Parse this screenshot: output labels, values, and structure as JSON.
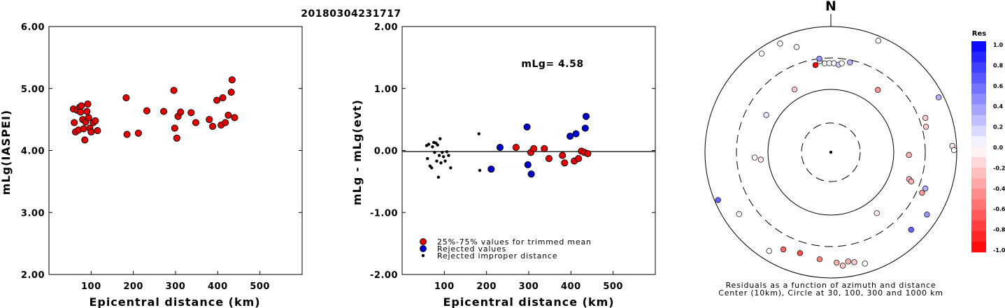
{
  "title": "20180304231717",
  "colors": {
    "red": "#e00000",
    "blue": "#0000cc",
    "black": "#000000"
  },
  "chart_data": [
    {
      "type": "scatter",
      "xlabel": "Epicentral distance (km)",
      "ylabel": "mLg(IASPEI)",
      "xlim": [
        0,
        600
      ],
      "ylim": [
        2.0,
        6.0
      ],
      "xticks": [
        "100",
        "200",
        "300",
        "400",
        "500"
      ],
      "yticks": [
        "2.00",
        "3.00",
        "4.00",
        "5.00",
        "6.00"
      ],
      "series": [
        {
          "color": "red",
          "points": [
            [
              58,
              4.67
            ],
            [
              60,
              4.45
            ],
            [
              63,
              4.3
            ],
            [
              67,
              4.65
            ],
            [
              70,
              4.33
            ],
            [
              73,
              4.7
            ],
            [
              75,
              4.62
            ],
            [
              77,
              4.72
            ],
            [
              80,
              4.5
            ],
            [
              82,
              4.35
            ],
            [
              85,
              4.17
            ],
            [
              87,
              4.46
            ],
            [
              90,
              4.63
            ],
            [
              92,
              4.75
            ],
            [
              94,
              4.53
            ],
            [
              97,
              4.36
            ],
            [
              100,
              4.3
            ],
            [
              105,
              4.45
            ],
            [
              110,
              4.48
            ],
            [
              115,
              4.32
            ],
            [
              183,
              4.85
            ],
            [
              185,
              4.26
            ],
            [
              212,
              4.28
            ],
            [
              232,
              4.64
            ],
            [
              272,
              4.63
            ],
            [
              296,
              4.97
            ],
            [
              298,
              4.36
            ],
            [
              303,
              4.2
            ],
            [
              306,
              4.55
            ],
            [
              312,
              4.62
            ],
            [
              337,
              4.61
            ],
            [
              348,
              4.45
            ],
            [
              380,
              4.5
            ],
            [
              388,
              4.39
            ],
            [
              398,
              4.81
            ],
            [
              408,
              4.41
            ],
            [
              412,
              4.85
            ],
            [
              418,
              4.45
            ],
            [
              425,
              4.57
            ],
            [
              432,
              4.94
            ],
            [
              434,
              5.14
            ],
            [
              440,
              4.53
            ]
          ]
        }
      ]
    },
    {
      "type": "scatter",
      "xlabel": "Epicentral distance (km)",
      "ylabel": "mLg - mLg(evt)",
      "xlim": [
        0,
        600
      ],
      "ylim": [
        -2.0,
        2.0
      ],
      "xticks": [
        "100",
        "200",
        "300",
        "400",
        "500"
      ],
      "yticks": [
        "-2.00",
        "-1.00",
        "0.00",
        "1.00",
        "2.00"
      ],
      "annotation": "mLg= 4.58",
      "series": [
        {
          "name": "25%-75% values for trimmed mean",
          "color": "red",
          "marker": "circle",
          "points": [
            [
              270,
              0.05
            ],
            [
              305,
              -0.03
            ],
            [
              312,
              0.03
            ],
            [
              337,
              0.03
            ],
            [
              348,
              -0.13
            ],
            [
              380,
              -0.08
            ],
            [
              385,
              -0.2
            ],
            [
              408,
              -0.17
            ],
            [
              418,
              -0.13
            ],
            [
              425,
              -0.01
            ],
            [
              432,
              -0.03
            ],
            [
              440,
              -0.05
            ]
          ]
        },
        {
          "name": "Rejected values",
          "color": "blue",
          "marker": "circle",
          "points": [
            [
              211,
              -0.3
            ],
            [
              232,
              0.05
            ],
            [
              296,
              0.38
            ],
            [
              298,
              -0.23
            ],
            [
              306,
              -0.38
            ],
            [
              398,
              0.23
            ],
            [
              412,
              0.27
            ],
            [
              434,
              0.36
            ],
            [
              436,
              0.55
            ]
          ]
        },
        {
          "name": "Rejected improper distance",
          "color": "black",
          "marker": "dot",
          "points": [
            [
              58,
              0.08
            ],
            [
              60,
              -0.13
            ],
            [
              63,
              0.1
            ],
            [
              66,
              -0.25
            ],
            [
              70,
              -0.28
            ],
            [
              72,
              0.06
            ],
            [
              75,
              0.13
            ],
            [
              77,
              -0.03
            ],
            [
              80,
              0.12
            ],
            [
              82,
              -0.17
            ],
            [
              84,
              0.09
            ],
            [
              86,
              -0.43
            ],
            [
              88,
              -0.08
            ],
            [
              90,
              0.19
            ],
            [
              92,
              -0.2
            ],
            [
              95,
              -0.03
            ],
            [
              98,
              -0.1
            ],
            [
              102,
              -0.17
            ],
            [
              106,
              -0.02
            ],
            [
              110,
              -0.08
            ],
            [
              115,
              -0.28
            ],
            [
              182,
              0.27
            ],
            [
              184,
              -0.32
            ]
          ]
        }
      ]
    },
    {
      "type": "polar-scatter",
      "north_label": "N",
      "caption_line1": "Residuals as a function of azimuth and distance",
      "caption_line2": "Center (10km), Circle at 30, 100, 300 and 1000 km",
      "rings_km": [
        30,
        100,
        300,
        1000
      ],
      "colorbar": {
        "title": "Res",
        "min": -1.0,
        "max": 1.0,
        "tick_labels": [
          "1.0",
          "0.8",
          "0.6",
          "0.4",
          "0.2",
          "0.0",
          "-0.2",
          "-0.4",
          "-0.6",
          "-0.8",
          "-1.0"
        ]
      },
      "points": [
        {
          "az": -4,
          "dist_km": 250,
          "res": 0.0
        },
        {
          "az": -1,
          "dist_km": 250,
          "res": 0.0
        },
        {
          "az": 2,
          "dist_km": 250,
          "res": 0.0
        },
        {
          "az": 5,
          "dist_km": 240,
          "res": 0.2
        },
        {
          "az": 7,
          "dist_km": 255,
          "res": 0.0
        },
        {
          "az": 12,
          "dist_km": 275,
          "res": 0.3
        },
        {
          "az": -7,
          "dist_km": 275,
          "res": -0.1
        },
        {
          "az": -10,
          "dist_km": 245,
          "res": -1.0
        },
        {
          "az": -7,
          "dist_km": 300,
          "res": 0.4
        },
        {
          "az": -18,
          "dist_km": 560,
          "res": 0.0
        },
        {
          "az": -25,
          "dist_km": 800,
          "res": 0.0
        },
        {
          "az": -35,
          "dist_km": 820,
          "res": 0.0
        },
        {
          "az": 23,
          "dist_km": 840,
          "res": 0.0
        },
        {
          "az": 37,
          "dist_km": 170,
          "res": -0.4
        },
        {
          "az": -30,
          "dist_km": 140,
          "res": -0.2
        },
        {
          "az": 63,
          "dist_km": 830,
          "res": 0.3
        },
        {
          "az": 75,
          "dist_km": 350,
          "res": -0.2
        },
        {
          "az": 70,
          "dist_km": 380,
          "res": -0.2
        },
        {
          "az": 87,
          "dist_km": 850,
          "res": -0.1
        },
        {
          "az": 89,
          "dist_km": 900,
          "res": 0.0
        },
        {
          "az": 92,
          "dist_km": 170,
          "res": -0.3
        },
        {
          "az": 109,
          "dist_km": 200,
          "res": -0.3
        },
        {
          "az": 110,
          "dist_km": 220,
          "res": -0.3
        },
        {
          "az": 111,
          "dist_km": 390,
          "res": 0.3
        },
        {
          "az": 114,
          "dist_km": 370,
          "res": -0.4
        },
        {
          "az": 123,
          "dist_km": 650,
          "res": 0.4
        },
        {
          "az": 134,
          "dist_km": 580,
          "res": 0.6
        },
        {
          "az": 143,
          "dist_km": 160,
          "res": -0.1
        },
        {
          "az": 163,
          "dist_km": 700,
          "res": 0.0
        },
        {
          "az": 168,
          "dist_km": 600,
          "res": -0.2
        },
        {
          "az": 171,
          "dist_km": 560,
          "res": -0.3
        },
        {
          "az": 174,
          "dist_km": 640,
          "res": -0.2
        },
        {
          "az": 177,
          "dist_km": 560,
          "res": -0.3
        },
        {
          "az": 186,
          "dist_km": 500,
          "res": -0.5
        },
        {
          "az": 197,
          "dist_km": 460,
          "res": -0.7
        },
        {
          "az": 206,
          "dist_km": 510,
          "res": -0.6
        },
        {
          "az": 212,
          "dist_km": 700,
          "res": 0.0
        },
        {
          "az": 236,
          "dist_km": 560,
          "res": 0.0
        },
        {
          "az": 247,
          "dist_km": 880,
          "res": 0.6
        },
        {
          "az": 264,
          "dist_km": 130,
          "res": -0.1
        },
        {
          "az": 266,
          "dist_km": 160,
          "res": 0.0
        },
        {
          "az": 300,
          "dist_km": 150,
          "res": 0.1
        }
      ]
    }
  ]
}
